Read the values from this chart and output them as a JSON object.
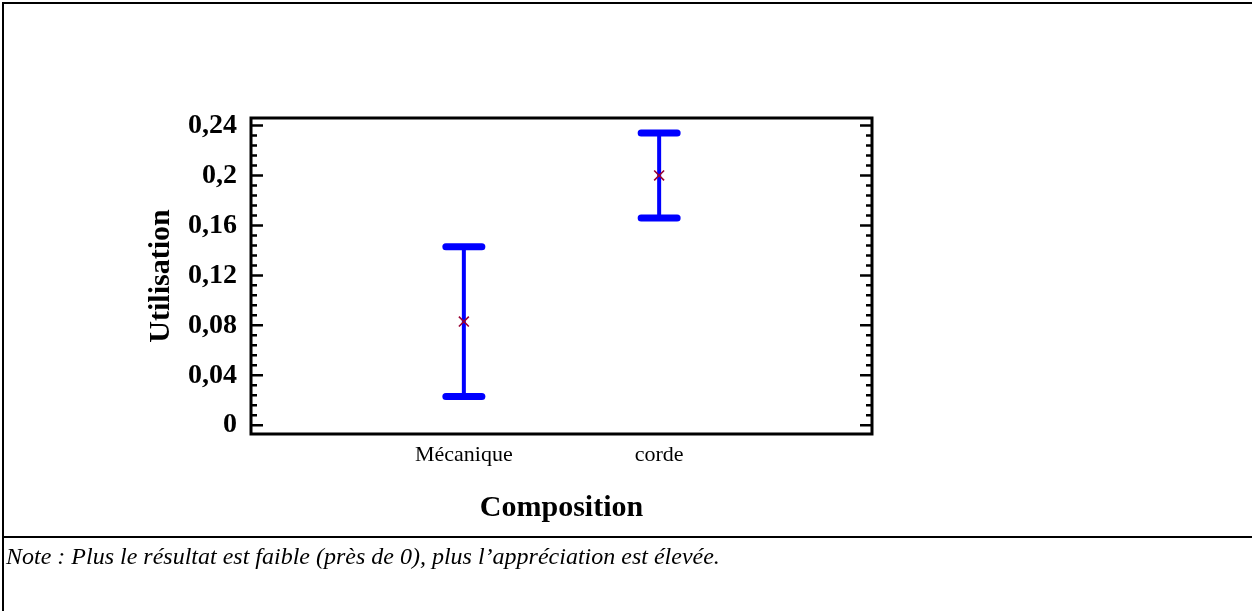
{
  "chart_data": {
    "type": "scatter",
    "xlabel": "Composition",
    "ylabel": "Utilisation",
    "annotations": [
      "Note : Plus le résultat est faible (près de 0), plus l’appréciation est élevée."
    ],
    "categories": [
      "Mécanique",
      "corde"
    ],
    "values": [
      0.083,
      0.2
    ],
    "errors": [
      0.06,
      0.034
    ],
    "color": "#990033",
    "marker": "cross",
    "ylim": [
      -0.007,
      0.246
    ],
    "yticks": [
      0,
      {
        "value": 0.008,
        "label": null
      },
      {
        "value": 0.016,
        "label": null
      },
      {
        "value": 0.024,
        "label": null
      },
      {
        "value": 0.032,
        "label": null
      },
      {
        "value": 0.04,
        "label": "0,04"
      },
      {
        "value": 0.048,
        "label": null
      },
      {
        "value": 0.056,
        "label": null
      },
      {
        "value": 0.064,
        "label": null
      },
      {
        "value": 0.072,
        "label": null
      },
      {
        "value": 0.08,
        "label": "0,08"
      },
      {
        "value": 0.088,
        "label": null
      },
      {
        "value": 0.096,
        "label": null
      },
      {
        "value": 0.104,
        "label": null
      },
      {
        "value": 0.112,
        "label": null
      },
      {
        "value": 0.12,
        "label": "0,12"
      },
      {
        "value": 0.128,
        "label": null
      },
      {
        "value": 0.136,
        "label": null
      },
      {
        "value": 0.144,
        "label": null
      },
      {
        "value": 0.152,
        "label": null
      },
      {
        "value": 0.16,
        "label": "0,16"
      },
      {
        "value": 0.168,
        "label": null
      },
      {
        "value": 0.176,
        "label": null
      },
      {
        "value": 0.184,
        "label": null
      },
      {
        "value": 0.192,
        "label": null
      },
      {
        "value": 0.2,
        "label": "0,2"
      },
      {
        "value": 0.208,
        "label": null
      },
      {
        "value": 0.216,
        "label": null
      },
      {
        "value": 0.224,
        "label": null
      },
      {
        "value": 0.232,
        "label": null
      },
      {
        "value": 0.24,
        "label": "0,24"
      }
    ]
  }
}
